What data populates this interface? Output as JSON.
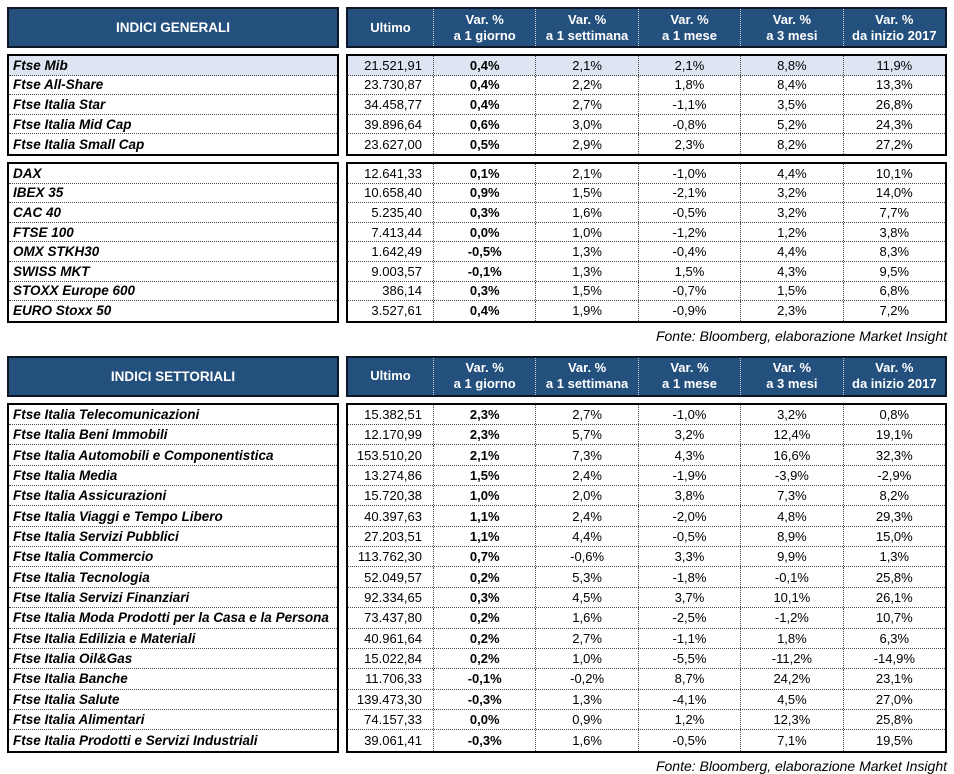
{
  "colors": {
    "header_bg": "#24507E",
    "highlight_bg": "#DCE5F1",
    "border": "#000000"
  },
  "columns": [
    {
      "label": "Ultimo",
      "sub": ""
    },
    {
      "label": "Var. %",
      "sub": "a 1 giorno"
    },
    {
      "label": "Var. %",
      "sub": "a 1 settimana"
    },
    {
      "label": "Var. %",
      "sub": "a 1 mese"
    },
    {
      "label": "Var. %",
      "sub": "a 3 mesi"
    },
    {
      "label": "Var. %",
      "sub": "da inizio 2017"
    }
  ],
  "tables": [
    {
      "title": "INDICI GENERALI",
      "fonte": "Fonte: Bloomberg, elaborazione Market Insight",
      "groups": [
        {
          "rows": [
            {
              "name": "Ftse Mib",
              "ultimo": "21.521,91",
              "vars": [
                "0,4%",
                "2,1%",
                "2,1%",
                "8,8%",
                "11,9%"
              ],
              "highlight": true
            },
            {
              "name": "Ftse All-Share",
              "ultimo": "23.730,87",
              "vars": [
                "0,4%",
                "2,2%",
                "1,8%",
                "8,4%",
                "13,3%"
              ]
            },
            {
              "name": "Ftse Italia Star",
              "ultimo": "34.458,77",
              "vars": [
                "0,4%",
                "2,7%",
                "-1,1%",
                "3,5%",
                "26,8%"
              ]
            },
            {
              "name": "Ftse Italia Mid Cap",
              "ultimo": "39.896,64",
              "vars": [
                "0,6%",
                "3,0%",
                "-0,8%",
                "5,2%",
                "24,3%"
              ]
            },
            {
              "name": "Ftse Italia Small Cap",
              "ultimo": "23.627,00",
              "vars": [
                "0,5%",
                "2,9%",
                "2,3%",
                "8,2%",
                "27,2%"
              ]
            }
          ]
        },
        {
          "rows": [
            {
              "name": "DAX",
              "ultimo": "12.641,33",
              "vars": [
                "0,1%",
                "2,1%",
                "-1,0%",
                "4,4%",
                "10,1%"
              ]
            },
            {
              "name": "IBEX 35",
              "ultimo": "10.658,40",
              "vars": [
                "0,9%",
                "1,5%",
                "-2,1%",
                "3,2%",
                "14,0%"
              ]
            },
            {
              "name": "CAC 40",
              "ultimo": "5.235,40",
              "vars": [
                "0,3%",
                "1,6%",
                "-0,5%",
                "3,2%",
                "7,7%"
              ]
            },
            {
              "name": "FTSE 100",
              "ultimo": "7.413,44",
              "vars": [
                "0,0%",
                "1,0%",
                "-1,2%",
                "1,2%",
                "3,8%"
              ]
            },
            {
              "name": "OMX STKH30",
              "ultimo": "1.642,49",
              "vars": [
                "-0,5%",
                "1,3%",
                "-0,4%",
                "4,4%",
                "8,3%"
              ]
            },
            {
              "name": "SWISS MKT",
              "ultimo": "9.003,57",
              "vars": [
                "-0,1%",
                "1,3%",
                "1,5%",
                "4,3%",
                "9,5%"
              ]
            },
            {
              "name": "STOXX Europe 600",
              "ultimo": "386,14",
              "vars": [
                "0,3%",
                "1,5%",
                "-0,7%",
                "1,5%",
                "6,8%"
              ]
            },
            {
              "name": "EURO Stoxx 50",
              "ultimo": "3.527,61",
              "vars": [
                "0,4%",
                "1,9%",
                "-0,9%",
                "2,3%",
                "7,2%"
              ]
            }
          ]
        }
      ]
    },
    {
      "title": "INDICI SETTORIALI",
      "fonte": "Fonte: Bloomberg, elaborazione Market Insight",
      "groups": [
        {
          "rows": [
            {
              "name": "Ftse Italia Telecomunicazioni",
              "ultimo": "15.382,51",
              "vars": [
                "2,3%",
                "2,7%",
                "-1,0%",
                "3,2%",
                "0,8%"
              ]
            },
            {
              "name": "Ftse Italia Beni Immobili",
              "ultimo": "12.170,99",
              "vars": [
                "2,3%",
                "5,7%",
                "3,2%",
                "12,4%",
                "19,1%"
              ]
            },
            {
              "name": "Ftse Italia Automobili e Componentistica",
              "ultimo": "153.510,20",
              "vars": [
                "2,1%",
                "7,3%",
                "4,3%",
                "16,6%",
                "32,3%"
              ]
            },
            {
              "name": "Ftse Italia Media",
              "ultimo": "13.274,86",
              "vars": [
                "1,5%",
                "2,4%",
                "-1,9%",
                "-3,9%",
                "-2,9%"
              ]
            },
            {
              "name": "Ftse Italia Assicurazioni",
              "ultimo": "15.720,38",
              "vars": [
                "1,0%",
                "2,0%",
                "3,8%",
                "7,3%",
                "8,2%"
              ]
            },
            {
              "name": "Ftse Italia Viaggi e Tempo Libero",
              "ultimo": "40.397,63",
              "vars": [
                "1,1%",
                "2,4%",
                "-2,0%",
                "4,8%",
                "29,3%"
              ]
            },
            {
              "name": "Ftse Italia Servizi Pubblici",
              "ultimo": "27.203,51",
              "vars": [
                "1,1%",
                "4,4%",
                "-0,5%",
                "8,9%",
                "15,0%"
              ]
            },
            {
              "name": "Ftse Italia Commercio",
              "ultimo": "113.762,30",
              "vars": [
                "0,7%",
                "-0,6%",
                "3,3%",
                "9,9%",
                "1,3%"
              ]
            },
            {
              "name": "Ftse Italia Tecnologia",
              "ultimo": "52.049,57",
              "vars": [
                "0,2%",
                "5,3%",
                "-1,8%",
                "-0,1%",
                "25,8%"
              ]
            },
            {
              "name": "Ftse Italia Servizi Finanziari",
              "ultimo": "92.334,65",
              "vars": [
                "0,3%",
                "4,5%",
                "3,7%",
                "10,1%",
                "26,1%"
              ]
            },
            {
              "name": "Ftse Italia Moda Prodotti per la Casa e la Persona",
              "ultimo": "73.437,80",
              "vars": [
                "0,2%",
                "1,6%",
                "-2,5%",
                "-1,2%",
                "10,7%"
              ]
            },
            {
              "name": "Ftse Italia Edilizia e Materiali",
              "ultimo": "40.961,64",
              "vars": [
                "0,2%",
                "2,7%",
                "-1,1%",
                "1,8%",
                "6,3%"
              ]
            },
            {
              "name": "Ftse Italia Oil&Gas",
              "ultimo": "15.022,84",
              "vars": [
                "0,2%",
                "1,0%",
                "-5,5%",
                "-11,2%",
                "-14,9%"
              ]
            },
            {
              "name": "Ftse Italia Banche",
              "ultimo": "11.706,33",
              "vars": [
                "-0,1%",
                "-0,2%",
                "8,7%",
                "24,2%",
                "23,1%"
              ]
            },
            {
              "name": "Ftse Italia Salute",
              "ultimo": "139.473,30",
              "vars": [
                "-0,3%",
                "1,3%",
                "-4,1%",
                "4,5%",
                "27,0%"
              ]
            },
            {
              "name": "Ftse Italia Alimentari",
              "ultimo": "74.157,33",
              "vars": [
                "0,0%",
                "0,9%",
                "1,2%",
                "12,3%",
                "25,8%"
              ]
            },
            {
              "name": "Ftse Italia Prodotti e Servizi Industriali",
              "ultimo": "39.061,41",
              "vars": [
                "-0,3%",
                "1,6%",
                "-0,5%",
                "7,1%",
                "19,5%"
              ]
            }
          ]
        }
      ]
    }
  ]
}
